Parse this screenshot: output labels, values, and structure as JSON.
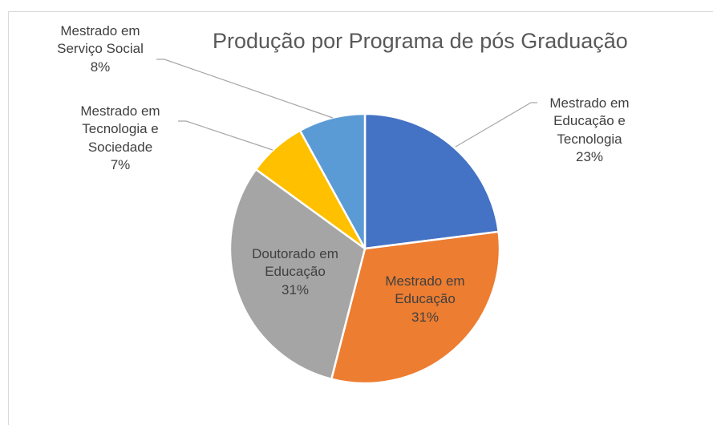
{
  "chart_data": {
    "type": "pie",
    "title": "Produção por Programa de pós Graduação",
    "categories": [
      "Mestrado em Educação e Tecnologia",
      "Mestrado em Educação",
      "Doutorado em Educação",
      "Mestrado em Tecnologia e Sociedade",
      "Mestrado em Serviço Social"
    ],
    "values": [
      23,
      31,
      31,
      7,
      8
    ],
    "value_labels": [
      "23%",
      "31%",
      "31%",
      "7%",
      "8%"
    ],
    "colors": [
      "#4472c4",
      "#ed7d31",
      "#a5a5a5",
      "#ffc000",
      "#5b9bd5"
    ]
  }
}
